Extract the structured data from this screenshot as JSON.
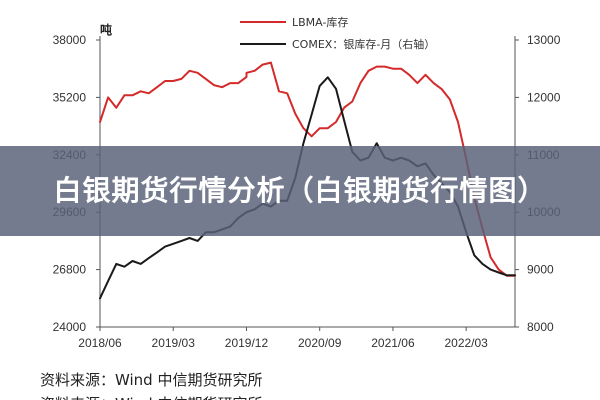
{
  "banner": {
    "title": "白银期货行情分析（白银期货行情图）"
  },
  "source_note": "资料来源：Wind  中信期货研究所",
  "colors": {
    "lbma": "#d42a2a",
    "comex": "#1a1a1a",
    "banner_bg": "#5a6278"
  },
  "chart_data": {
    "type": "line",
    "title": "",
    "xlabel": "",
    "y_left_label": "吨",
    "y_right_label": "",
    "x_ticks": [
      "2018/06",
      "2019/03",
      "2019/12",
      "2020/09",
      "2021/06",
      "2022/03"
    ],
    "x_range": [
      "2018/06",
      "2022/09"
    ],
    "y_left_ticks": [
      24000,
      26800,
      29600,
      32400,
      35200,
      38000
    ],
    "y_left_range": [
      24000,
      38000
    ],
    "y_right_ticks": [
      8000,
      9000,
      10000,
      11000,
      12000,
      13000
    ],
    "y_right_range": [
      8000,
      13000
    ],
    "legend_position": "top-center",
    "series": [
      {
        "name": "LBMA-库存",
        "axis": "left",
        "color": "#d42a2a",
        "x": [
          "2018/06",
          "2018/07",
          "2018/08",
          "2018/09",
          "2018/10",
          "2018/11",
          "2018/12",
          "2019/01",
          "2019/02",
          "2019/03",
          "2019/04",
          "2019/05",
          "2019/06",
          "2019/07",
          "2019/08",
          "2019/09",
          "2019/10",
          "2019/11",
          "2019/12",
          "2019/12",
          "2020/01",
          "2020/02",
          "2020/03",
          "2020/04",
          "2020/05",
          "2020/06",
          "2020/07",
          "2020/08",
          "2020/09",
          "2020/10",
          "2020/11",
          "2020/12",
          "2021/01",
          "2021/02",
          "2021/03",
          "2021/04",
          "2021/05",
          "2021/06",
          "2021/07",
          "2021/08",
          "2021/09",
          "2021/10",
          "2021/11",
          "2021/12",
          "2022/01",
          "2022/02",
          "2022/03",
          "2022/04",
          "2022/05",
          "2022/06",
          "2022/07",
          "2022/08",
          "2022/09"
        ],
        "values": [
          34000,
          35200,
          34700,
          35300,
          35300,
          35500,
          35400,
          35700,
          36000,
          36000,
          36100,
          36500,
          36400,
          36100,
          35800,
          35700,
          35900,
          35900,
          36200,
          36400,
          36500,
          36800,
          36900,
          35500,
          35400,
          34400,
          33700,
          33300,
          33700,
          33700,
          34000,
          34700,
          35000,
          35900,
          36500,
          36700,
          36700,
          36600,
          36600,
          36300,
          35900,
          36300,
          35900,
          35600,
          35100,
          34000,
          32200,
          30300,
          28800,
          27400,
          26800,
          26500,
          26500
        ]
      },
      {
        "name": "COMEX：银库存-月（右轴）",
        "axis": "right",
        "color": "#1a1a1a",
        "x": [
          "2018/06",
          "2018/07",
          "2018/08",
          "2018/09",
          "2018/10",
          "2018/11",
          "2018/12",
          "2019/01",
          "2019/02",
          "2019/03",
          "2019/04",
          "2019/05",
          "2019/06",
          "2019/07",
          "2019/08",
          "2019/09",
          "2019/10",
          "2019/11",
          "2019/12",
          "2020/01",
          "2020/02",
          "2020/03",
          "2020/04",
          "2020/05",
          "2020/06",
          "2020/07",
          "2020/08",
          "2020/09",
          "2020/10",
          "2020/11",
          "2020/12",
          "2021/01",
          "2021/02",
          "2021/03",
          "2021/04",
          "2021/05",
          "2021/06",
          "2021/07",
          "2021/08",
          "2021/09",
          "2021/10",
          "2021/11",
          "2021/12",
          "2022/01",
          "2022/02",
          "2022/03",
          "2022/04",
          "2022/05",
          "2022/06",
          "2022/07",
          "2022/08",
          "2022/09"
        ],
        "values": [
          8500,
          8800,
          9100,
          9050,
          9150,
          9100,
          9200,
          9300,
          9400,
          9450,
          9500,
          9550,
          9500,
          9650,
          9650,
          9700,
          9750,
          9900,
          10000,
          10050,
          10150,
          10100,
          10200,
          10200,
          10600,
          11200,
          11700,
          12200,
          12350,
          12150,
          11600,
          11050,
          10900,
          10950,
          11200,
          10950,
          10900,
          10950,
          10900,
          10800,
          10850,
          10650,
          10500,
          10350,
          10100,
          9650,
          9250,
          9100,
          9000,
          8950,
          8900,
          8900
        ]
      }
    ]
  }
}
